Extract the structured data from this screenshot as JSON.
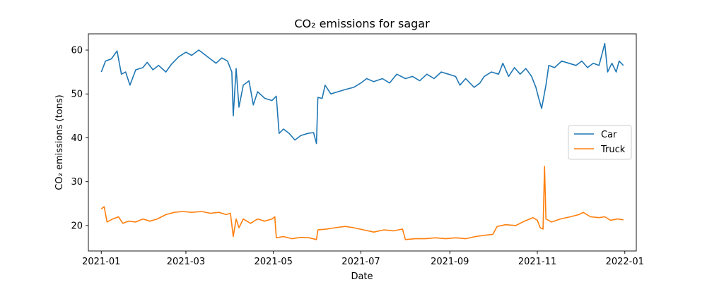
{
  "chart_data": {
    "type": "line",
    "title": "CO₂ emissions for sagar",
    "xlabel": "Date",
    "ylabel": "CO₂ emissions (tons)",
    "x_ticks": [
      "2021-01",
      "2021-03",
      "2021-05",
      "2021-07",
      "2021-09",
      "2021-11",
      "2022-01"
    ],
    "y_ticks": [
      20,
      30,
      40,
      50,
      60
    ],
    "xlim": [
      "2020-12-23",
      "2022-01-09"
    ],
    "ylim": [
      14.2,
      63.7
    ],
    "grid": false,
    "legend_position": "center-right",
    "series": [
      {
        "name": "Car",
        "color": "#1f77b4",
        "points": [
          [
            "2021-01-01",
            55.0
          ],
          [
            "2021-01-04",
            57.5
          ],
          [
            "2021-01-08",
            58.0
          ],
          [
            "2021-01-12",
            59.8
          ],
          [
            "2021-01-15",
            54.5
          ],
          [
            "2021-01-18",
            55.0
          ],
          [
            "2021-01-21",
            52.0
          ],
          [
            "2021-01-25",
            55.5
          ],
          [
            "2021-01-30",
            56.0
          ],
          [
            "2021-02-02",
            57.2
          ],
          [
            "2021-02-06",
            55.5
          ],
          [
            "2021-02-10",
            56.5
          ],
          [
            "2021-02-15",
            55.0
          ],
          [
            "2021-02-19",
            56.8
          ],
          [
            "2021-02-24",
            58.5
          ],
          [
            "2021-03-01",
            59.5
          ],
          [
            "2021-03-05",
            58.8
          ],
          [
            "2021-03-10",
            60.0
          ],
          [
            "2021-03-14",
            59.0
          ],
          [
            "2021-03-18",
            58.0
          ],
          [
            "2021-03-22",
            57.0
          ],
          [
            "2021-03-26",
            58.2
          ],
          [
            "2021-03-30",
            57.5
          ],
          [
            "2021-04-02",
            55.0
          ],
          [
            "2021-04-03",
            45.0
          ],
          [
            "2021-04-05",
            55.8
          ],
          [
            "2021-04-07",
            47.0
          ],
          [
            "2021-04-10",
            52.0
          ],
          [
            "2021-04-14",
            53.0
          ],
          [
            "2021-04-17",
            47.5
          ],
          [
            "2021-04-20",
            50.5
          ],
          [
            "2021-04-25",
            49.0
          ],
          [
            "2021-04-30",
            48.5
          ],
          [
            "2021-05-03",
            49.5
          ],
          [
            "2021-05-05",
            41.0
          ],
          [
            "2021-05-08",
            42.0
          ],
          [
            "2021-05-12",
            41.0
          ],
          [
            "2021-05-16",
            39.5
          ],
          [
            "2021-05-20",
            40.5
          ],
          [
            "2021-05-25",
            41.0
          ],
          [
            "2021-05-29",
            41.2
          ],
          [
            "2021-05-31",
            38.7
          ],
          [
            "2021-06-01",
            49.2
          ],
          [
            "2021-06-04",
            49.0
          ],
          [
            "2021-06-06",
            52.0
          ],
          [
            "2021-06-10",
            50.0
          ],
          [
            "2021-06-15",
            50.5
          ],
          [
            "2021-06-20",
            51.0
          ],
          [
            "2021-06-26",
            51.5
          ],
          [
            "2021-07-01",
            52.5
          ],
          [
            "2021-07-05",
            53.5
          ],
          [
            "2021-07-10",
            52.8
          ],
          [
            "2021-07-16",
            53.5
          ],
          [
            "2021-07-21",
            52.5
          ],
          [
            "2021-07-26",
            54.5
          ],
          [
            "2021-08-01",
            53.5
          ],
          [
            "2021-08-06",
            54.0
          ],
          [
            "2021-08-11",
            53.0
          ],
          [
            "2021-08-16",
            54.5
          ],
          [
            "2021-08-21",
            53.5
          ],
          [
            "2021-08-26",
            55.0
          ],
          [
            "2021-08-31",
            54.5
          ],
          [
            "2021-09-05",
            54.0
          ],
          [
            "2021-09-08",
            52.0
          ],
          [
            "2021-09-12",
            53.5
          ],
          [
            "2021-09-18",
            51.5
          ],
          [
            "2021-09-22",
            52.5
          ],
          [
            "2021-09-25",
            54.0
          ],
          [
            "2021-09-30",
            55.0
          ],
          [
            "2021-10-05",
            54.5
          ],
          [
            "2021-10-08",
            57.0
          ],
          [
            "2021-10-12",
            54.0
          ],
          [
            "2021-10-16",
            56.0
          ],
          [
            "2021-10-20",
            54.5
          ],
          [
            "2021-10-24",
            55.8
          ],
          [
            "2021-10-28",
            54.0
          ],
          [
            "2021-10-31",
            51.5
          ],
          [
            "2021-11-02",
            49.0
          ],
          [
            "2021-11-04",
            46.7
          ],
          [
            "2021-11-07",
            52.0
          ],
          [
            "2021-11-09",
            56.5
          ],
          [
            "2021-11-13",
            56.0
          ],
          [
            "2021-11-18",
            57.5
          ],
          [
            "2021-11-23",
            57.0
          ],
          [
            "2021-11-28",
            56.5
          ],
          [
            "2021-12-02",
            57.5
          ],
          [
            "2021-12-06",
            56.0
          ],
          [
            "2021-12-10",
            57.0
          ],
          [
            "2021-12-14",
            56.5
          ],
          [
            "2021-12-18",
            61.5
          ],
          [
            "2021-12-20",
            55.0
          ],
          [
            "2021-12-23",
            57.0
          ],
          [
            "2021-12-26",
            55.0
          ],
          [
            "2021-12-28",
            57.5
          ],
          [
            "2021-12-31",
            56.5
          ]
        ]
      },
      {
        "name": "Truck",
        "color": "#ff7f0e",
        "points": [
          [
            "2021-01-01",
            23.8
          ],
          [
            "2021-01-03",
            24.3
          ],
          [
            "2021-01-05",
            20.8
          ],
          [
            "2021-01-09",
            21.5
          ],
          [
            "2021-01-13",
            22.0
          ],
          [
            "2021-01-16",
            20.5
          ],
          [
            "2021-01-20",
            21.0
          ],
          [
            "2021-01-25",
            20.8
          ],
          [
            "2021-01-30",
            21.5
          ],
          [
            "2021-02-04",
            21.0
          ],
          [
            "2021-02-09",
            21.5
          ],
          [
            "2021-02-15",
            22.5
          ],
          [
            "2021-02-21",
            23.0
          ],
          [
            "2021-02-27",
            23.2
          ],
          [
            "2021-03-05",
            23.0
          ],
          [
            "2021-03-12",
            23.2
          ],
          [
            "2021-03-18",
            22.8
          ],
          [
            "2021-03-24",
            23.0
          ],
          [
            "2021-03-29",
            22.5
          ],
          [
            "2021-04-01",
            22.8
          ],
          [
            "2021-04-03",
            17.5
          ],
          [
            "2021-04-05",
            21.5
          ],
          [
            "2021-04-07",
            19.5
          ],
          [
            "2021-04-10",
            21.5
          ],
          [
            "2021-04-15",
            20.5
          ],
          [
            "2021-04-20",
            21.5
          ],
          [
            "2021-04-25",
            21.0
          ],
          [
            "2021-04-30",
            21.5
          ],
          [
            "2021-05-02",
            22.0
          ],
          [
            "2021-05-03",
            17.2
          ],
          [
            "2021-05-08",
            17.5
          ],
          [
            "2021-05-14",
            17.0
          ],
          [
            "2021-05-20",
            17.3
          ],
          [
            "2021-05-26",
            17.2
          ],
          [
            "2021-05-31",
            16.8
          ],
          [
            "2021-06-01",
            19.0
          ],
          [
            "2021-06-07",
            19.2
          ],
          [
            "2021-06-13",
            19.5
          ],
          [
            "2021-06-20",
            19.8
          ],
          [
            "2021-06-26",
            19.5
          ],
          [
            "2021-07-03",
            19.0
          ],
          [
            "2021-07-10",
            18.5
          ],
          [
            "2021-07-17",
            19.0
          ],
          [
            "2021-07-24",
            18.8
          ],
          [
            "2021-07-30",
            19.2
          ],
          [
            "2021-08-01",
            16.8
          ],
          [
            "2021-08-08",
            17.0
          ],
          [
            "2021-08-15",
            17.0
          ],
          [
            "2021-08-22",
            17.2
          ],
          [
            "2021-08-29",
            17.0
          ],
          [
            "2021-09-05",
            17.2
          ],
          [
            "2021-09-12",
            17.0
          ],
          [
            "2021-09-19",
            17.5
          ],
          [
            "2021-09-26",
            17.8
          ],
          [
            "2021-10-01",
            18.0
          ],
          [
            "2021-10-04",
            19.8
          ],
          [
            "2021-10-10",
            20.2
          ],
          [
            "2021-10-17",
            20.0
          ],
          [
            "2021-10-23",
            21.0
          ],
          [
            "2021-10-29",
            21.8
          ],
          [
            "2021-11-01",
            21.2
          ],
          [
            "2021-11-03",
            19.5
          ],
          [
            "2021-11-05",
            19.2
          ],
          [
            "2021-11-06",
            33.5
          ],
          [
            "2021-11-07",
            21.5
          ],
          [
            "2021-11-11",
            20.8
          ],
          [
            "2021-11-17",
            21.5
          ],
          [
            "2021-11-24",
            22.0
          ],
          [
            "2021-11-30",
            22.5
          ],
          [
            "2021-12-03",
            23.0
          ],
          [
            "2021-12-08",
            22.0
          ],
          [
            "2021-12-14",
            21.8
          ],
          [
            "2021-12-18",
            22.0
          ],
          [
            "2021-12-22",
            21.2
          ],
          [
            "2021-12-27",
            21.5
          ],
          [
            "2021-12-31",
            21.3
          ]
        ]
      }
    ]
  }
}
